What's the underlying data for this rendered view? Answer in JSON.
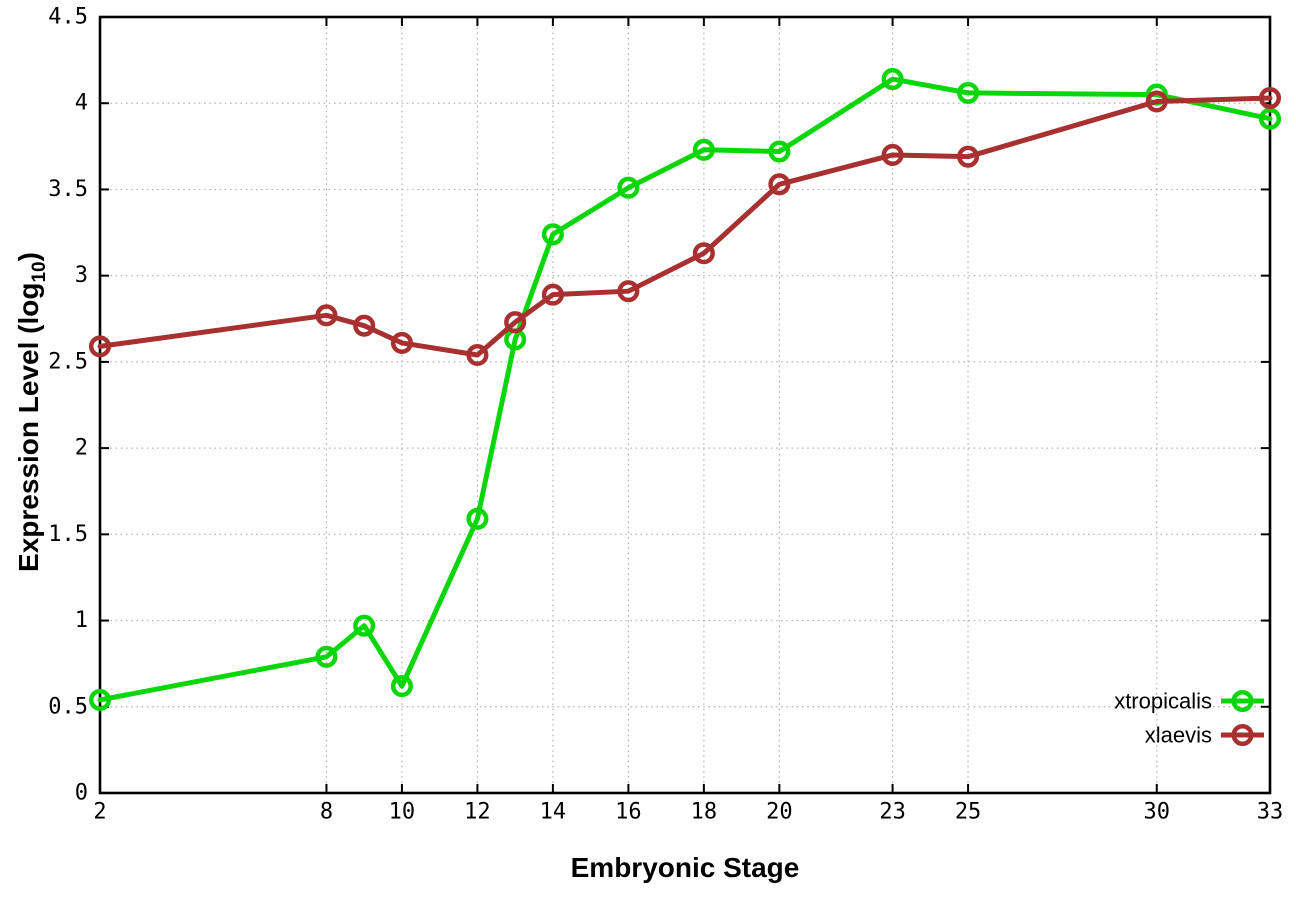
{
  "figure": {
    "background": "#ffffff",
    "axis_color": "#000000",
    "grid_color": "#b4b4b4",
    "ylabel_prefix": "Expression Level (log",
    "ylabel_sub": "10",
    "ylabel_suffix": ")"
  },
  "chart_data": {
    "type": "line",
    "title": "",
    "xlabel": "Embryonic Stage",
    "ylabel": "Expression Level (log_10)",
    "x": [
      2,
      8,
      9,
      10,
      12,
      13,
      14,
      16,
      18,
      20,
      23,
      25,
      30,
      33
    ],
    "series": [
      {
        "name": "xtropicalis",
        "color": "#0bd60b",
        "marker": "open-circle",
        "values": [
          0.54,
          0.79,
          0.97,
          0.62,
          1.59,
          2.63,
          3.24,
          3.51,
          3.73,
          3.72,
          4.14,
          4.06,
          4.05,
          3.91
        ]
      },
      {
        "name": "xlaevis",
        "color": "#a83030",
        "marker": "open-circle",
        "values": [
          2.59,
          2.77,
          2.71,
          2.61,
          2.54,
          2.73,
          2.89,
          2.91,
          3.13,
          3.53,
          3.7,
          3.69,
          4.01,
          4.03
        ]
      }
    ],
    "xticks": [
      2,
      8,
      10,
      12,
      14,
      16,
      18,
      20,
      23,
      25,
      30,
      33
    ],
    "yticks": [
      0,
      0.5,
      1,
      1.5,
      2,
      2.5,
      3,
      3.5,
      4,
      4.5
    ],
    "xlim": [
      2,
      33
    ],
    "ylim": [
      0,
      4.5
    ],
    "grid": true,
    "grid_style": "dotted",
    "legend_position": "inside bottom-right",
    "legend_entries": [
      "xtropicalis",
      "xlaevis"
    ]
  }
}
